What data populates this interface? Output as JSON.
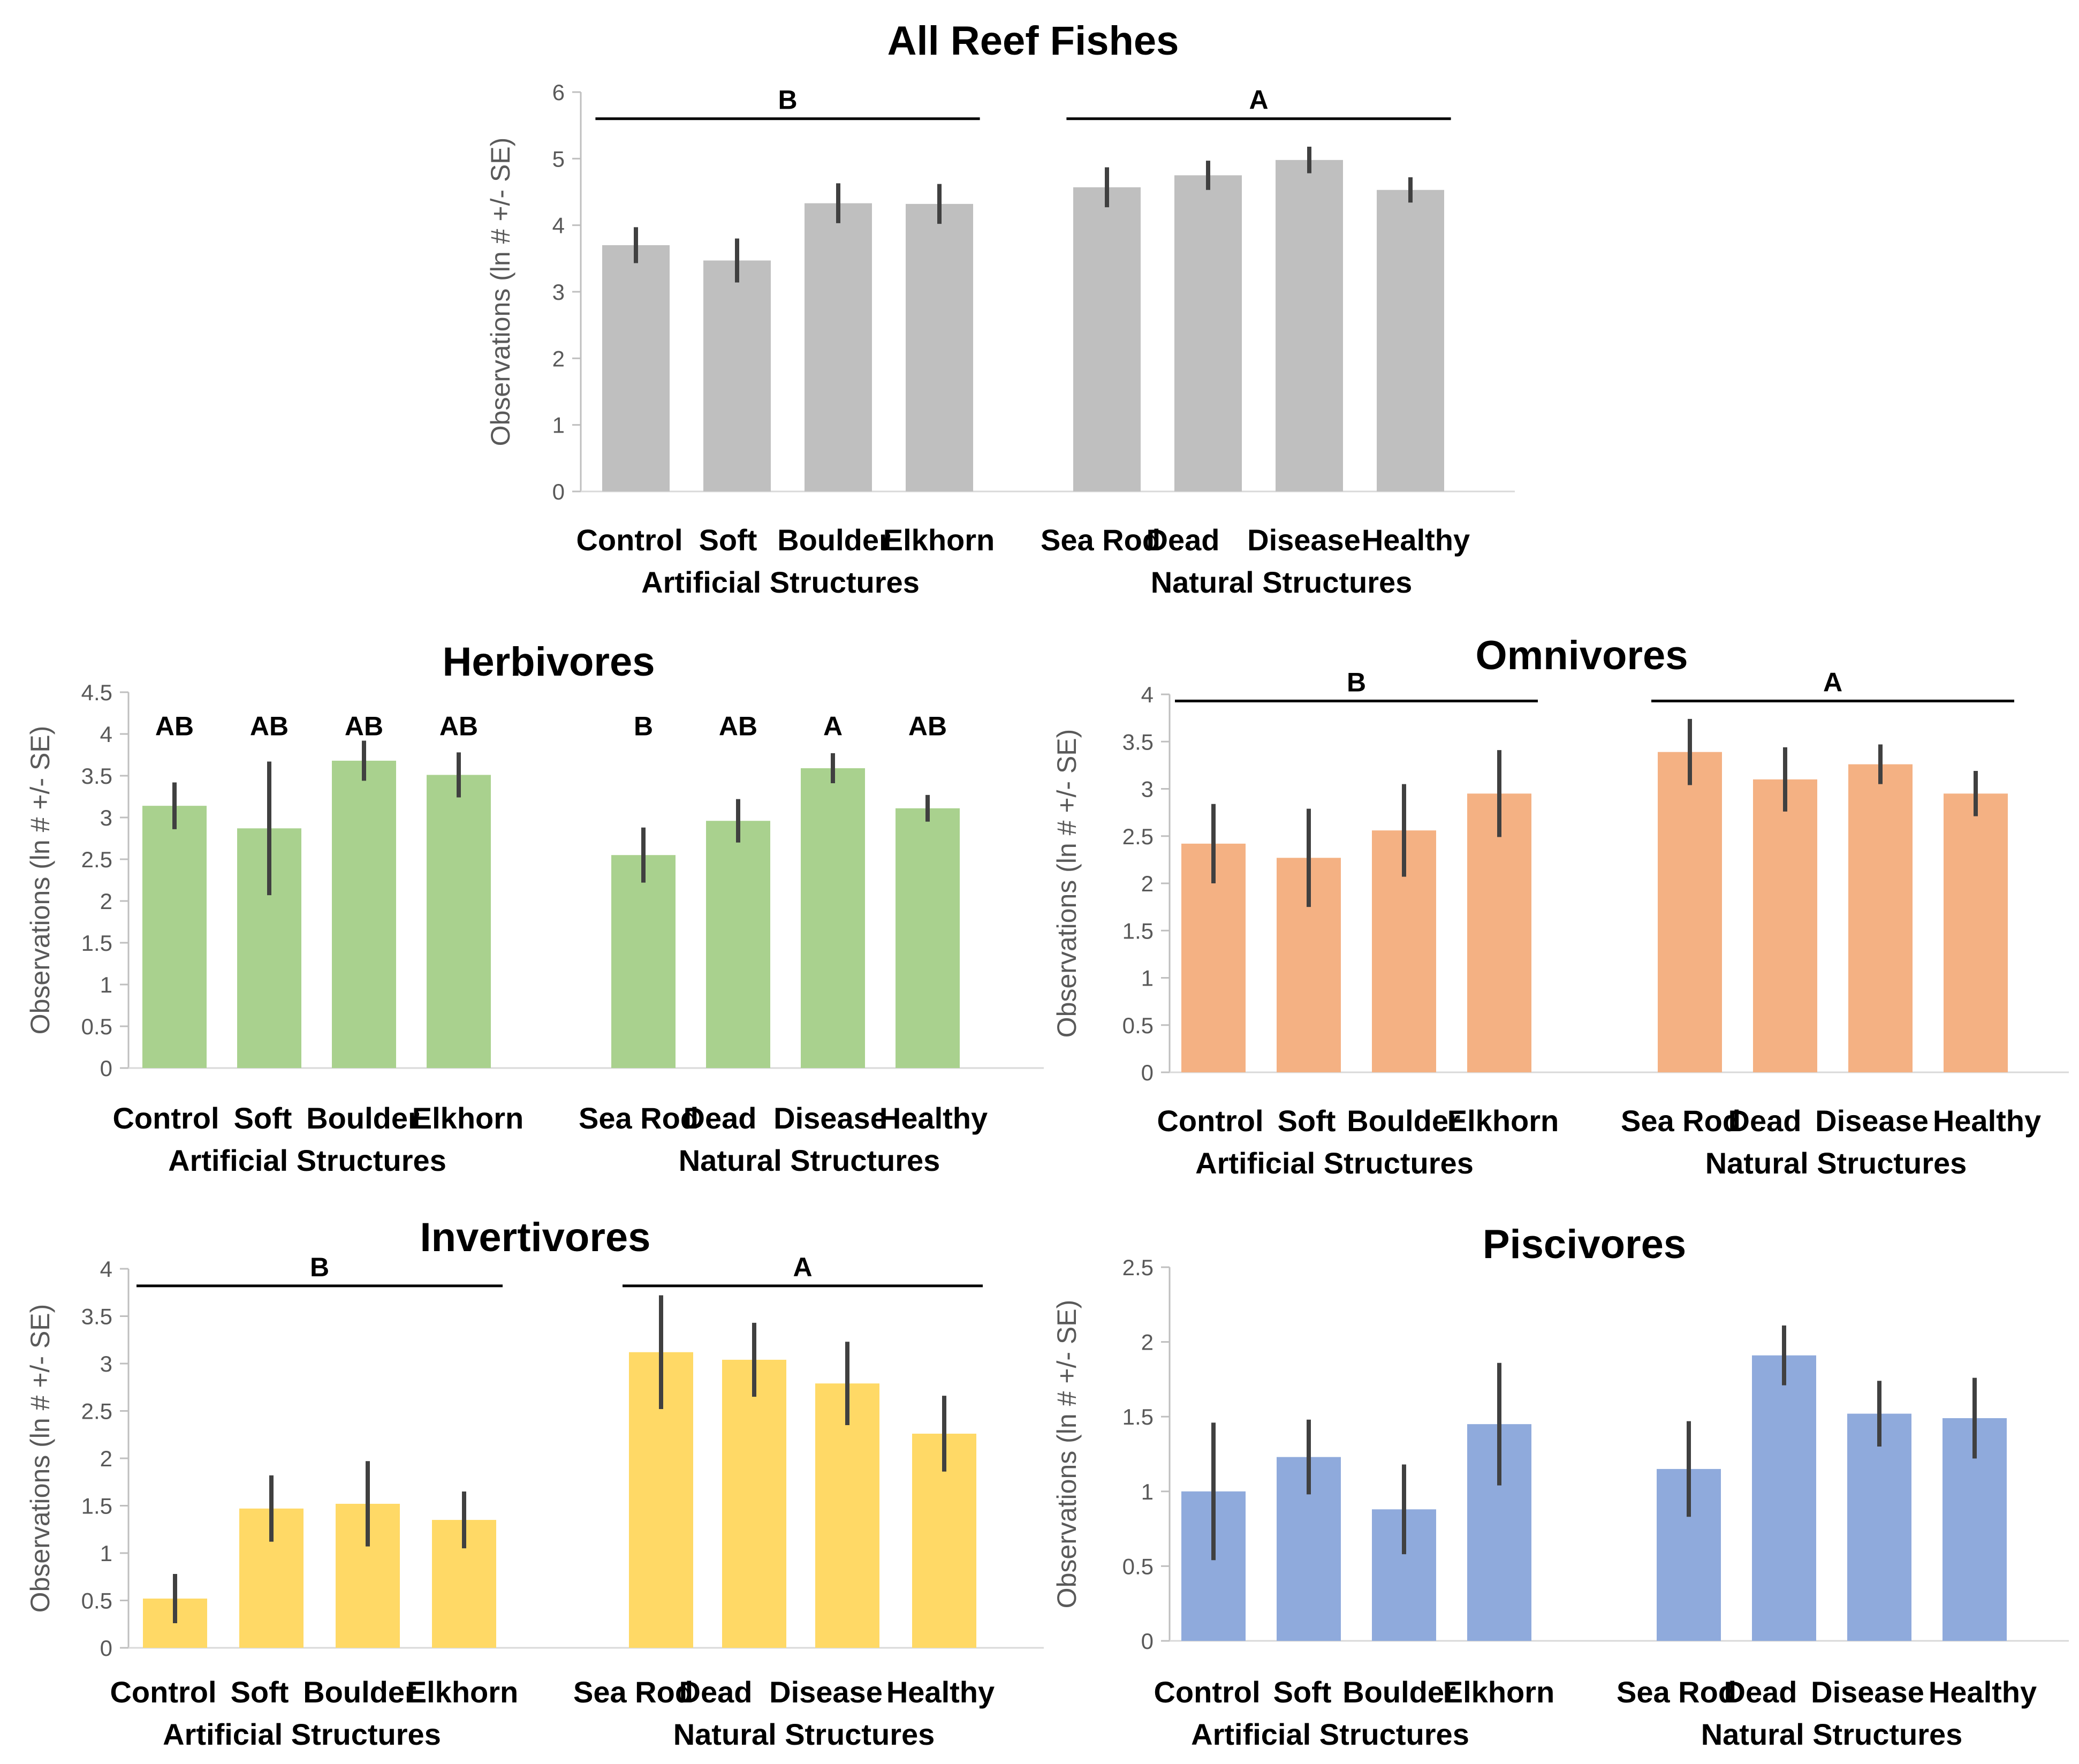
{
  "chart_data": [
    {
      "type": "bar",
      "title": "All Reef Fishes",
      "ylabel": "Observations (ln # +/- SE)",
      "ylim": [
        0,
        6
      ],
      "yticks": [
        "0",
        "1",
        "2",
        "3",
        "4",
        "5",
        "6"
      ],
      "categories": [
        "Control",
        "Soft",
        "Boulder",
        "Elkhorn",
        "Sea Rod",
        "Dead",
        "Disease",
        "Healthy"
      ],
      "groups": [
        "Artificial Structures",
        "Natural Structures"
      ],
      "values": [
        3.7,
        3.47,
        4.33,
        4.32,
        4.57,
        4.75,
        4.98,
        4.53
      ],
      "errors": [
        0.27,
        0.33,
        0.3,
        0.3,
        0.3,
        0.22,
        0.2,
        0.19
      ],
      "color": "#bfbfbf",
      "significance_groups": [
        {
          "label": "B",
          "span": [
            0,
            3
          ],
          "level": 5.6
        },
        {
          "label": "A",
          "span": [
            4,
            7
          ],
          "level": 5.6
        }
      ]
    },
    {
      "type": "bar",
      "title": "Herbivores",
      "ylabel": "Observations (ln # +/- SE)",
      "ylim": [
        0,
        4.5
      ],
      "yticks": [
        "0",
        "0.5",
        "1",
        "1.5",
        "2",
        "2.5",
        "3",
        "3.5",
        "4",
        "4.5"
      ],
      "categories": [
        "Control",
        "Soft",
        "Boulder",
        "Elkhorn",
        "Sea Rod",
        "Dead",
        "Disease",
        "Healthy"
      ],
      "groups": [
        "Artificial Structures",
        "Natural Structures"
      ],
      "values": [
        3.14,
        2.87,
        3.68,
        3.51,
        2.55,
        2.96,
        3.59,
        3.11
      ],
      "errors": [
        0.28,
        0.8,
        0.24,
        0.27,
        0.33,
        0.26,
        0.18,
        0.16
      ],
      "color": "#a9d18e",
      "bar_labels": [
        "AB",
        "AB",
        "AB",
        "AB",
        "B",
        "AB",
        "A",
        "AB"
      ],
      "bar_label_level": 4.1
    },
    {
      "type": "bar",
      "title": "Omnivores",
      "ylabel": "Observations (ln # +/- SE)",
      "ylim": [
        0,
        4
      ],
      "yticks": [
        "0",
        "0.5",
        "1",
        "1.5",
        "2",
        "2.5",
        "3",
        "3.5",
        "4"
      ],
      "categories": [
        "Control",
        "Soft",
        "Boulder",
        "Elkhorn",
        "Sea Rod",
        "Dead",
        "Disease",
        "Healthy"
      ],
      "groups": [
        "Artificial Structures",
        "Natural Structures"
      ],
      "values": [
        2.42,
        2.27,
        2.56,
        2.95,
        3.39,
        3.1,
        3.26,
        2.95
      ],
      "errors": [
        0.42,
        0.52,
        0.49,
        0.46,
        0.35,
        0.34,
        0.21,
        0.24
      ],
      "color": "#f4b183",
      "significance_groups": [
        {
          "label": "B",
          "span": [
            0,
            3
          ],
          "level": 3.93
        },
        {
          "label": "A",
          "span": [
            4,
            7
          ],
          "level": 3.93
        }
      ]
    },
    {
      "type": "bar",
      "title": "Invertivores",
      "ylabel": "Observations (ln # +/- SE)",
      "ylim": [
        0,
        4
      ],
      "yticks": [
        "0",
        "0.5",
        "1",
        "1.5",
        "2",
        "2.5",
        "3",
        "3.5",
        "4"
      ],
      "categories": [
        "Control",
        "Soft",
        "Boulder",
        "Elkhorn",
        "Sea Rod",
        "Dead",
        "Disease",
        "Healthy"
      ],
      "groups": [
        "Artificial Structures",
        "Natural Structures"
      ],
      "values": [
        0.52,
        1.47,
        1.52,
        1.35,
        3.12,
        3.04,
        2.79,
        2.26
      ],
      "errors": [
        0.26,
        0.35,
        0.45,
        0.3,
        0.6,
        0.39,
        0.44,
        0.4
      ],
      "color": "#ffd966",
      "significance_groups": [
        {
          "label": "B",
          "span": [
            0,
            3
          ],
          "level": 3.82
        },
        {
          "label": "A",
          "span": [
            4,
            7
          ],
          "level": 3.82
        }
      ]
    },
    {
      "type": "bar",
      "title": "Piscivores",
      "ylabel": "Observations (ln # +/- SE)",
      "ylim": [
        0,
        2.5
      ],
      "yticks": [
        "0",
        "0.5",
        "1",
        "1.5",
        "2",
        "2.5"
      ],
      "categories": [
        "Control",
        "Soft",
        "Boulder",
        "Elkhorn",
        "Sea Rod",
        "Dead",
        "Disease",
        "Healthy"
      ],
      "groups": [
        "Artificial Structures",
        "Natural Structures"
      ],
      "values": [
        1.0,
        1.23,
        0.88,
        1.45,
        1.15,
        1.91,
        1.52,
        1.49
      ],
      "errors": [
        0.46,
        0.25,
        0.3,
        0.41,
        0.32,
        0.2,
        0.22,
        0.27
      ],
      "color": "#8faadc"
    }
  ]
}
